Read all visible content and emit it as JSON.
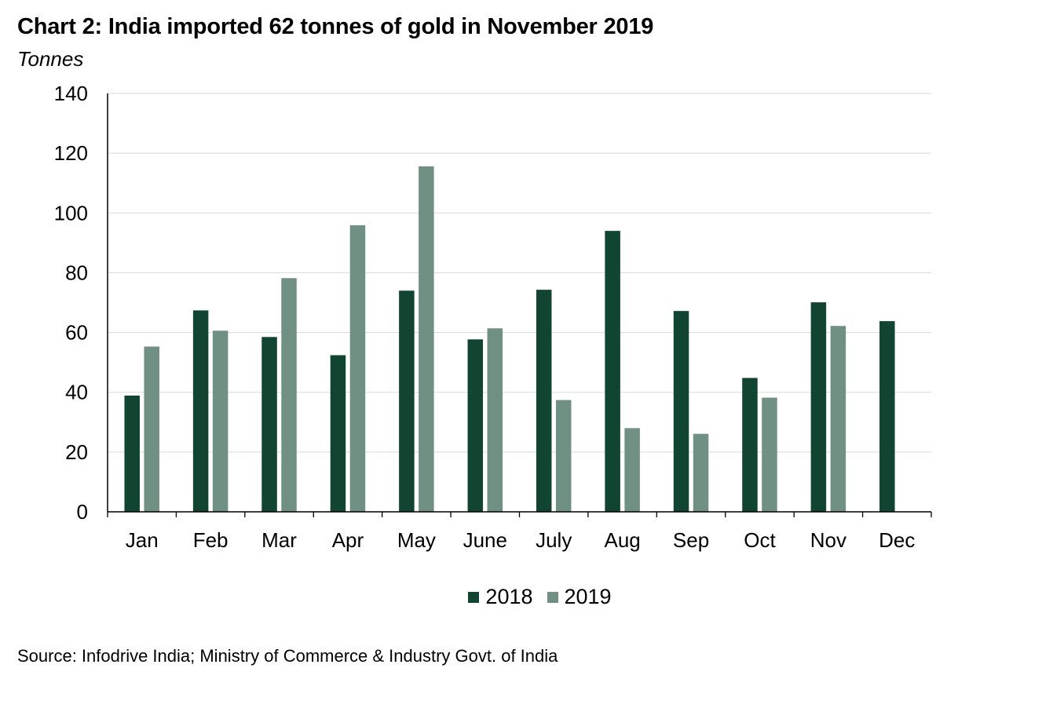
{
  "chart_data": {
    "type": "bar",
    "title": "Chart 2: India imported 62 tonnes of gold in November 2019",
    "subtitle": "Tonnes",
    "xlabel": "",
    "ylabel": "Tonnes",
    "ylim": [
      0,
      140
    ],
    "yticks": [
      0,
      20,
      40,
      60,
      80,
      100,
      120,
      140
    ],
    "grid": true,
    "legend_position": "bottom",
    "categories": [
      "Jan",
      "Feb",
      "Mar",
      "Apr",
      "May",
      "June",
      "July",
      "Aug",
      "Sep",
      "Oct",
      "Nov",
      "Dec"
    ],
    "series": [
      {
        "name": "2018",
        "color": "#114532",
        "values": [
          38.9,
          67.4,
          58.5,
          52.4,
          74.0,
          57.7,
          74.3,
          94.0,
          67.2,
          44.8,
          70.1,
          63.8
        ]
      },
      {
        "name": "2019",
        "color": "#6f9083",
        "values": [
          55.3,
          60.6,
          78.2,
          95.9,
          115.6,
          61.4,
          37.4,
          28.0,
          26.1,
          38.2,
          62.2,
          null
        ]
      }
    ],
    "source": "Source: Infodrive India; Ministry of Commerce &  Industry Govt. of India"
  },
  "colors": {
    "grid": "#d9d9d9",
    "axis": "#000000"
  }
}
